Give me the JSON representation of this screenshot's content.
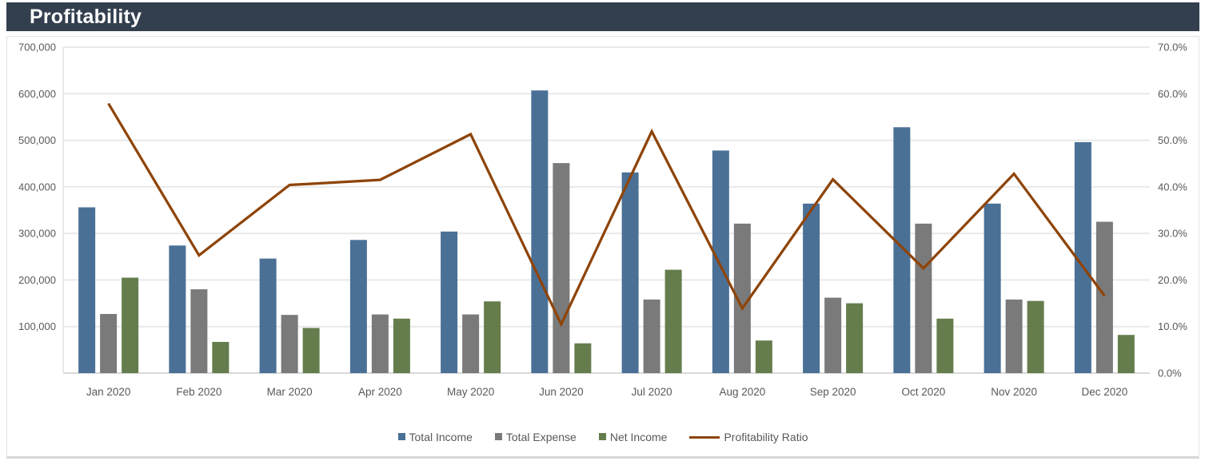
{
  "header": {
    "title": "Profitability"
  },
  "colors": {
    "header_bg": "#333F4F",
    "header_text": "#FFFFFF",
    "axis_text": "#595959",
    "gridline": "#E9E9E9",
    "axis_line": "#D9D9D9",
    "card_border": "#E4E4E4"
  },
  "chart_data": {
    "type": "combo-bar-line",
    "title": "Profitability",
    "grid": true,
    "legend_position": "bottom",
    "categories": [
      "Jan 2020",
      "Feb 2020",
      "Mar 2020",
      "Apr 2020",
      "May 2020",
      "Jun 2020",
      "Jul 2020",
      "Aug 2020",
      "Sep 2020",
      "Oct 2020",
      "Nov 2020",
      "Dec 2020"
    ],
    "series": [
      {
        "name": "Total Income",
        "type": "bar",
        "axis": "left",
        "color": "#4A7096",
        "values": [
          356000,
          274000,
          246000,
          286000,
          304000,
          607000,
          431000,
          478000,
          364000,
          528000,
          364000,
          496000
        ]
      },
      {
        "name": "Total Expense",
        "type": "bar",
        "axis": "left",
        "color": "#7A7A7A",
        "values": [
          127000,
          180000,
          125000,
          126000,
          126000,
          451000,
          158000,
          321000,
          162000,
          321000,
          158000,
          325000
        ]
      },
      {
        "name": "Net Income",
        "type": "bar",
        "axis": "left",
        "color": "#657D4D",
        "values": [
          205000,
          67000,
          97000,
          117000,
          154000,
          64000,
          222000,
          70000,
          150000,
          117000,
          155000,
          82000
        ]
      },
      {
        "name": "Profitability Ratio",
        "type": "line",
        "axis": "right",
        "color": "#8E4409",
        "values": [
          57.9,
          25.3,
          40.4,
          41.5,
          51.3,
          10.5,
          51.9,
          13.9,
          41.6,
          22.5,
          42.8,
          16.6
        ]
      }
    ],
    "left_axis": {
      "min": 0,
      "max": 700000,
      "step": 100000,
      "label_values": [
        100000,
        200000,
        300000,
        400000,
        500000,
        600000,
        700000
      ],
      "labels": [
        "100,000",
        "200,000",
        "300,000",
        "400,000",
        "500,000",
        "600,000",
        "700,000"
      ]
    },
    "right_axis": {
      "min": 0,
      "max": 70,
      "step": 10,
      "label_values": [
        0,
        10,
        20,
        30,
        40,
        50,
        60,
        70
      ],
      "labels": [
        "0.0%",
        "10.0%",
        "20.0%",
        "30.0%",
        "40.0%",
        "50.0%",
        "60.0%",
        "70.0%"
      ]
    }
  }
}
